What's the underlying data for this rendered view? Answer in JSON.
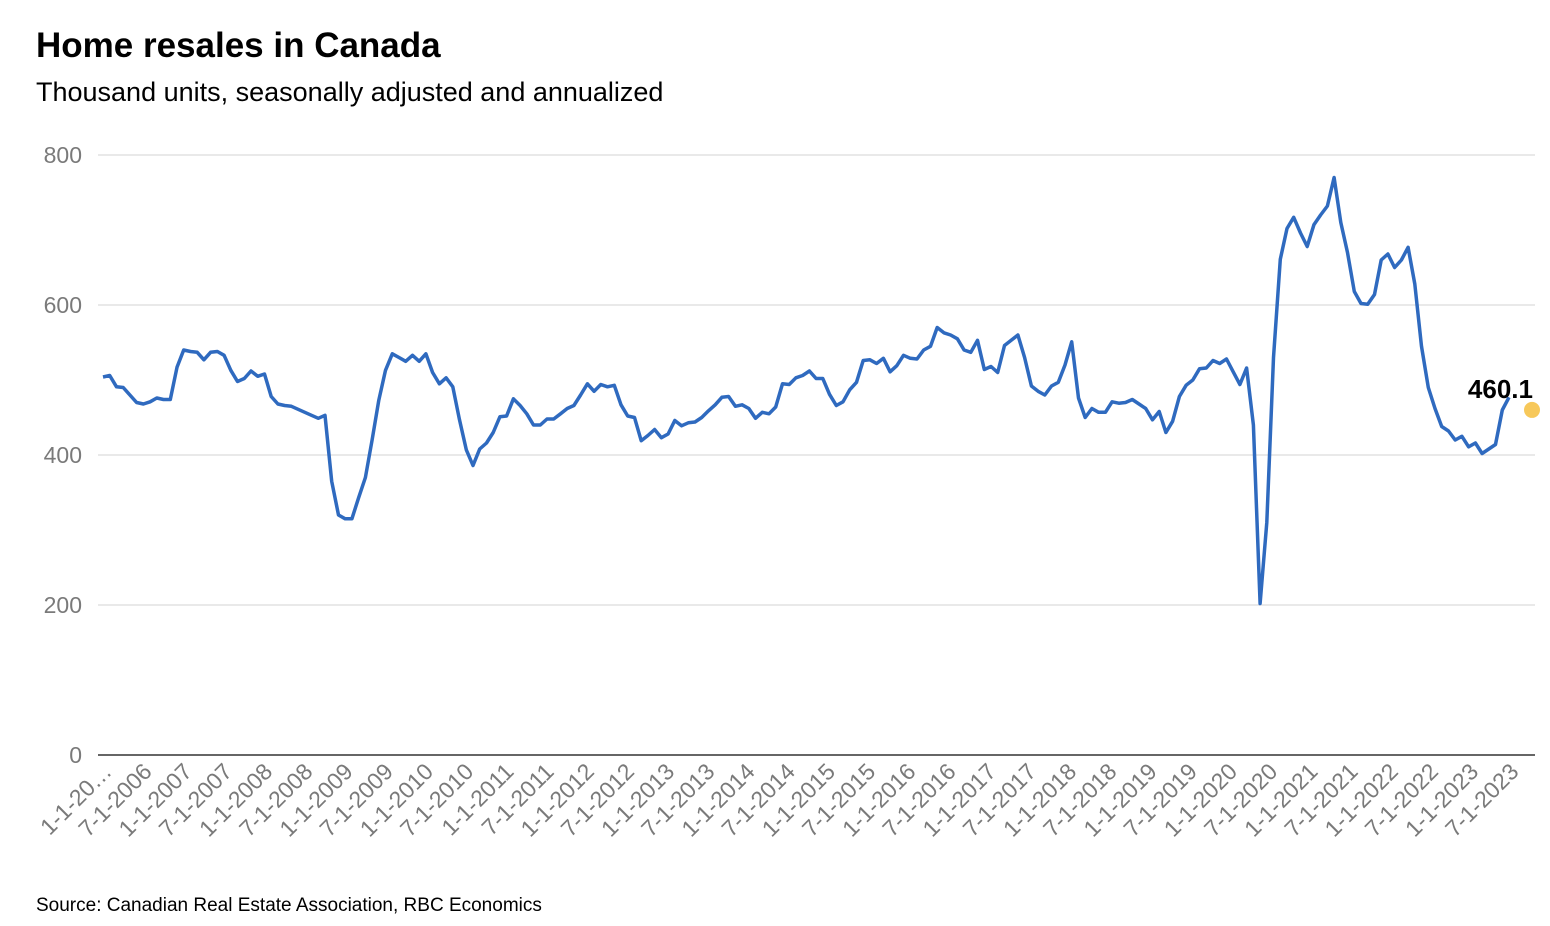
{
  "title": "Home resales in Canada",
  "subtitle": "Thousand units, seasonally adjusted and annualized",
  "source": "Source: Canadian Real Estate Association, RBC Economics",
  "colors": {
    "line": "#2f6abf",
    "marker": "#f7c85a",
    "grid": "#dcdcdc",
    "axis": "#333333",
    "tick_text": "#7a7a7a"
  },
  "chart_data": {
    "type": "line",
    "title": "Home resales in Canada",
    "subtitle": "Thousand units, seasonally adjusted and annualized",
    "ylim": [
      0,
      800
    ],
    "yticks": [
      0,
      200,
      400,
      600,
      800
    ],
    "grid": true,
    "x_start": "1-1-2006",
    "x_tick_labels": [
      "1-1-20…",
      "7-1-2006",
      "1-1-2007",
      "7-1-2007",
      "1-1-2008",
      "7-1-2008",
      "1-1-2009",
      "7-1-2009",
      "1-1-2010",
      "7-1-2010",
      "1-1-2011",
      "7-1-2011",
      "1-1-2012",
      "7-1-2012",
      "1-1-2013",
      "7-1-2013",
      "1-1-2014",
      "7-1-2014",
      "1-1-2015",
      "7-1-2015",
      "1-1-2016",
      "7-1-2016",
      "1-1-2017",
      "7-1-2017",
      "1-1-2018",
      "7-1-2018",
      "1-1-2019",
      "7-1-2019",
      "1-1-2020",
      "7-1-2020",
      "1-1-2021",
      "7-1-2021",
      "1-1-2022",
      "7-1-2022",
      "1-1-2023",
      "7-1-2023"
    ],
    "series": [
      {
        "values": [
          504,
          506,
          491,
          490,
          480,
          470,
          468,
          471,
          476,
          474,
          474,
          517,
          540,
          538,
          537,
          527,
          537,
          538,
          533,
          513,
          498,
          502,
          512,
          505,
          508,
          478,
          468,
          466,
          465,
          461,
          457,
          453,
          449,
          453,
          365,
          320,
          315,
          315,
          343,
          370,
          420,
          473,
          513,
          535,
          530,
          525,
          533,
          525,
          535,
          510,
          495,
          503,
          491,
          447,
          407,
          386,
          408,
          416,
          430,
          451,
          452,
          475,
          466,
          455,
          440,
          440,
          448,
          448,
          455,
          462,
          466,
          480,
          495,
          485,
          494,
          491,
          493,
          467,
          452,
          450,
          419,
          426,
          434,
          423,
          428,
          446,
          439,
          443,
          444,
          450,
          459,
          467,
          477,
          478,
          465,
          467,
          462,
          449,
          457,
          455,
          464,
          495,
          494,
          503,
          506,
          512,
          502,
          502,
          481,
          466,
          471,
          487,
          497,
          526,
          527,
          522,
          529,
          511,
          519,
          533,
          529,
          528,
          540,
          545,
          570,
          563,
          560,
          555,
          540,
          537,
          553,
          514,
          518,
          510,
          546,
          553,
          560,
          530,
          492,
          485,
          480,
          492,
          497,
          520,
          551,
          476,
          450,
          462,
          457,
          457,
          471,
          469,
          470,
          474,
          468,
          462,
          447,
          458,
          430,
          445,
          478,
          493,
          500,
          515,
          516,
          526,
          522,
          528,
          511,
          494,
          516,
          440,
          202,
          310,
          530,
          661,
          702,
          717,
          696,
          678,
          707,
          720,
          732,
          770,
          710,
          670,
          618,
          602,
          601,
          614,
          660,
          668,
          650,
          660,
          677,
          628,
          545,
          490,
          462,
          438,
          432,
          420,
          425,
          411,
          416,
          402,
          408,
          414,
          460,
          477
        ],
        "end_label": "460.1"
      }
    ]
  }
}
